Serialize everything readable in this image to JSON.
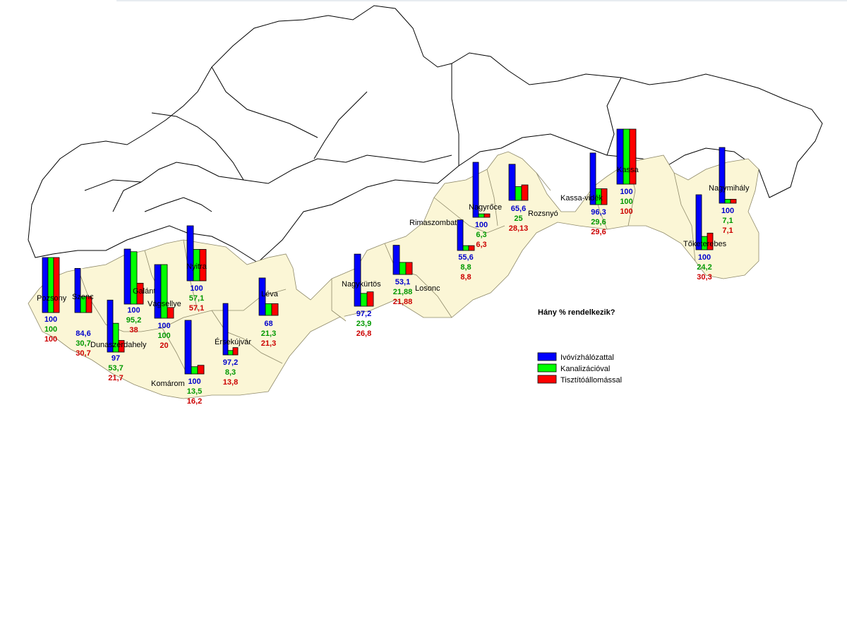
{
  "title": "Hány % rendelkezik?",
  "colors": {
    "water": "#0000ff",
    "sewer": "#00ff00",
    "treatment": "#ff0000",
    "region_fill": "#fbf6d6",
    "border": "#000000"
  },
  "legend": [
    {
      "key": "water",
      "label": "Ivóvízhálózattal"
    },
    {
      "key": "sewer",
      "label": "Kanalizációval"
    },
    {
      "key": "treatment",
      "label": "Tisztítóállomással"
    }
  ],
  "chart_data": {
    "type": "bar",
    "series": [
      {
        "name": "Ivóvízhálózattal",
        "key": "water"
      },
      {
        "name": "Kanalizációval",
        "key": "sewer"
      },
      {
        "name": "Tisztítóállomással",
        "key": "treatment"
      }
    ],
    "ylim": [
      0,
      100
    ],
    "districts": [
      {
        "name": "Pozsony",
        "water": "100",
        "sewer": "100",
        "treatment": "100"
      },
      {
        "name": "Szenc",
        "water": "84,6",
        "sewer": "30,7",
        "treatment": "30,7"
      },
      {
        "name": "Dunaszerdahely",
        "water": "97",
        "sewer": "53,7",
        "treatment": "21,7"
      },
      {
        "name": "Galánta",
        "water": "100",
        "sewer": "95,2",
        "treatment": "38"
      },
      {
        "name": "Vágsellye",
        "water": "100",
        "sewer": "100",
        "treatment": "20"
      },
      {
        "name": "Nyitra",
        "water": "100",
        "sewer": "57,1",
        "treatment": "57,1"
      },
      {
        "name": "Komárom",
        "water": "100",
        "sewer": "13,5",
        "treatment": "16,2"
      },
      {
        "name": "Érsekújvár",
        "water": "97,2",
        "sewer": "8,3",
        "treatment": "13,8"
      },
      {
        "name": "Léva",
        "water": "68",
        "sewer": "21,3",
        "treatment": "21,3"
      },
      {
        "name": "Nagykürtös",
        "water": "97,2",
        "sewer": "23,9",
        "treatment": "26,8"
      },
      {
        "name": "Losonc",
        "water": "53,1",
        "sewer": "21,88",
        "treatment": "21,88"
      },
      {
        "name": "Rimaszombat",
        "water": "55,6",
        "sewer": "8,8",
        "treatment": "8,8"
      },
      {
        "name": "Nagyrőce",
        "water": "100",
        "sewer": "6,3",
        "treatment": "6,3"
      },
      {
        "name": "Rozsnyó",
        "water": "65,6",
        "sewer": "25",
        "treatment": "28,13"
      },
      {
        "name": "Kassa-vidék",
        "water": "96,3",
        "sewer": "29,6",
        "treatment": "29,6"
      },
      {
        "name": "Kassa",
        "water": "100",
        "sewer": "100",
        "treatment": "100"
      },
      {
        "name": "Nagymihály",
        "water": "100",
        "sewer": "7,1",
        "treatment": "7,1"
      },
      {
        "name": "Tőketerebes",
        "water": "100",
        "sewer": "24,2",
        "treatment": "30,3"
      }
    ]
  }
}
